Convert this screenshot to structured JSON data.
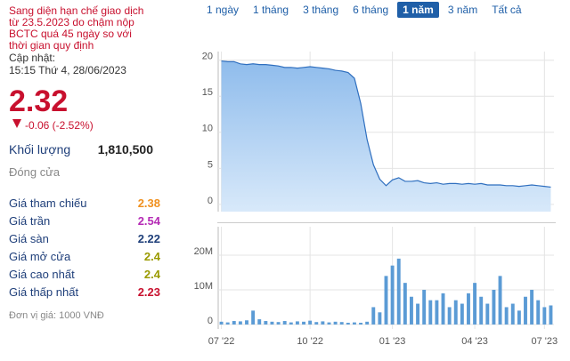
{
  "notice": [
    "Sang diện hạn chế giao dịch",
    "từ 23.5.2023 do chậm nộp",
    "BCTC quá 45 ngày so với",
    "thời gian quy định"
  ],
  "update_label": "Cập nhật:",
  "update_time": "15:15 Thứ 4, 28/06/2023",
  "price": "2.32",
  "change": "-0.06 (-2.52%)",
  "volume_label": "Khối lượng",
  "volume": "1,810,500",
  "status": "Đóng cửa",
  "rows": [
    {
      "label": "Giá tham chiếu",
      "value": "2.38",
      "color": "#f0901e"
    },
    {
      "label": "Giá trần",
      "value": "2.54",
      "color": "#b52bb5"
    },
    {
      "label": "Giá sàn",
      "value": "2.22",
      "color": "#1f3f7a"
    },
    {
      "label": "Giá mở cửa",
      "value": "2.4",
      "color": "#9a9a00"
    },
    {
      "label": "Giá cao nhất",
      "value": "2.4",
      "color": "#9a9a00"
    },
    {
      "label": "Giá thấp nhất",
      "value": "2.23",
      "color": "#c8102e"
    }
  ],
  "footer": "Đơn vị giá: 1000 VNĐ",
  "tabs": [
    "1 ngày",
    "1 tháng",
    "3 tháng",
    "6 tháng",
    "1 năm",
    "3 năm",
    "Tất cả"
  ],
  "active_tab": 4,
  "chart_data": [
    {
      "type": "area",
      "color": "#2f6fbf",
      "fill": "#a9cdf2",
      "grid": true,
      "values": [
        19.9,
        19.8,
        19.8,
        19.5,
        19.4,
        19.5,
        19.4,
        19.4,
        19.3,
        19.2,
        19.0,
        19.0,
        18.9,
        19.0,
        19.1,
        19.0,
        18.9,
        18.8,
        18.6,
        18.5,
        18.3,
        17.5,
        14.0,
        9.0,
        5.5,
        3.5,
        2.6,
        3.4,
        3.7,
        3.2,
        3.2,
        3.3,
        3.0,
        2.9,
        3.0,
        2.8,
        2.9,
        2.9,
        2.8,
        2.9,
        2.8,
        2.9,
        2.7,
        2.7,
        2.7,
        2.6,
        2.6,
        2.5,
        2.6,
        2.7,
        2.6,
        2.5,
        2.4
      ],
      "xlim": [
        -0.5,
        52.5
      ],
      "ylim": [
        -1,
        21.2
      ],
      "yticks": [
        0,
        5,
        10,
        15,
        20
      ]
    },
    {
      "type": "bar",
      "color": "#5b9bd5",
      "grid": true,
      "values": [
        800000,
        600000,
        1000000,
        900000,
        1200000,
        4000000,
        1500000,
        1000000,
        800000,
        700000,
        1000000,
        600000,
        900000,
        800000,
        1100000,
        700000,
        900000,
        600000,
        800000,
        700000,
        500000,
        600000,
        500000,
        800000,
        5000000,
        3500000,
        14000000,
        17000000,
        19000000,
        12000000,
        8000000,
        6000000,
        10000000,
        7000000,
        7000000,
        9000000,
        5000000,
        7000000,
        6000000,
        9000000,
        12000000,
        8000000,
        6000000,
        10000000,
        14000000,
        5000000,
        6000000,
        4000000,
        8000000,
        10000000,
        7000000,
        5000000,
        5500000
      ],
      "xlim": [
        -0.5,
        52.5
      ],
      "ylim": [
        -1300000,
        28200000
      ],
      "yticks": [
        {
          "value": 0,
          "label": "0"
        },
        {
          "value": 10000000,
          "label": "10M"
        },
        {
          "value": 20000000,
          "label": "20M"
        }
      ],
      "xticks": [
        {
          "value": 0,
          "label": "07 '22"
        },
        {
          "value": 14,
          "label": "10 '22"
        },
        {
          "value": 27,
          "label": "01 '23"
        },
        {
          "value": 40,
          "label": "04 '23"
        },
        {
          "value": 51,
          "label": "07 '23"
        }
      ]
    }
  ]
}
